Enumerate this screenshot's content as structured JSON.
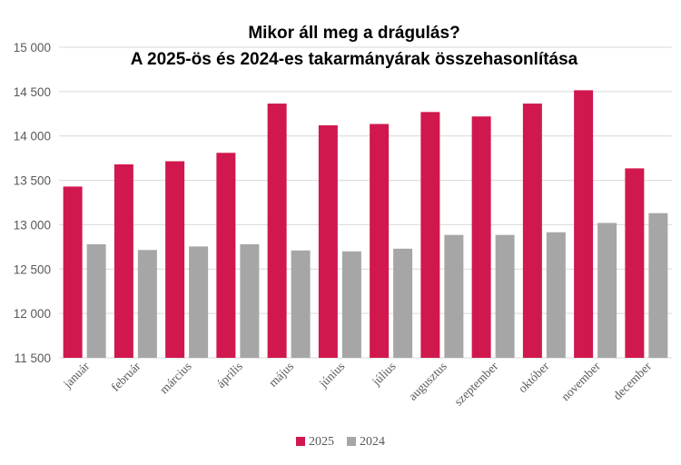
{
  "chart_data": {
    "type": "bar",
    "title": "Mikor áll meg a drágulás?",
    "subtitle": "A 2025-ös és 2024-es takarmányárak  összehasonlítása",
    "categories": [
      "január",
      "február",
      "március",
      "április",
      "május",
      "június",
      "július",
      "augusztus",
      "szeptember",
      "október",
      "november",
      "december"
    ],
    "series": [
      {
        "name": "2025",
        "color": "#d0184e",
        "values": [
          13430,
          13680,
          13715,
          13810,
          14365,
          14120,
          14135,
          14270,
          14220,
          14365,
          14515,
          13635
        ]
      },
      {
        "name": "2024",
        "color": "#a6a6a6",
        "values": [
          12780,
          12715,
          12755,
          12780,
          12710,
          12700,
          12730,
          12885,
          12885,
          12915,
          13020,
          13130
        ]
      }
    ],
    "ylim": [
      11500,
      15000
    ],
    "yticks": [
      11500,
      12000,
      12500,
      13000,
      13500,
      14000,
      14500,
      15000
    ],
    "ytick_labels": [
      "11 500",
      "12 000",
      "12 500",
      "13 000",
      "13 500",
      "14 000",
      "14 500",
      "15 000"
    ],
    "grid": true,
    "legend": "bottom-center",
    "xlabel": "",
    "ylabel": ""
  }
}
